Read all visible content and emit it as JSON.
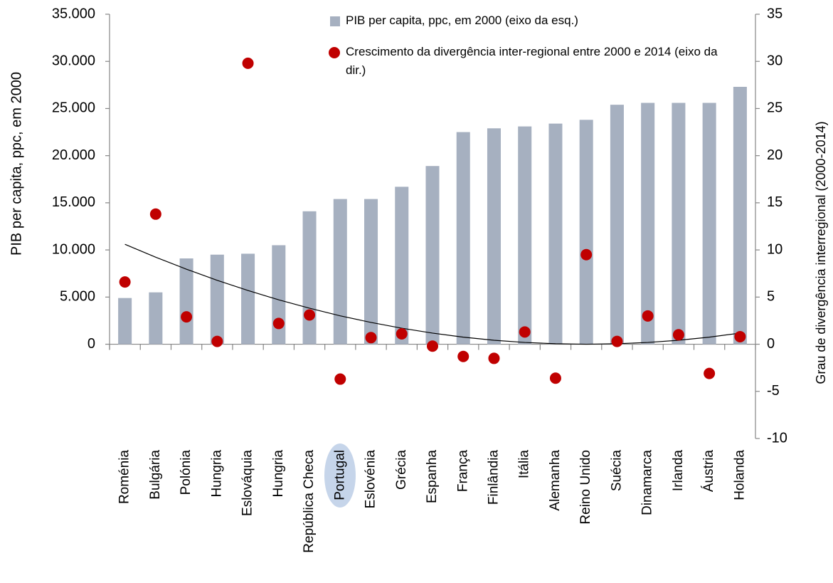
{
  "chart_data": {
    "type": "combo",
    "y_label": "PIB per capita, ppc, em 2000",
    "y2_label": "Grau de divergência interregional (2000-2014)",
    "categories": [
      "Roménia",
      "Bulgária",
      "Polónia",
      "Hungria",
      "Eslováquia",
      "Hungria",
      "República Checa",
      "Portugal",
      "Eslovénia",
      "Grécia",
      "Espanha",
      "França",
      "Finlândia",
      "Itália",
      "Alemanha",
      "Reino Unido",
      "Suécia",
      "Dinamarca",
      "Irlanda",
      "Áustria",
      "Holanda"
    ],
    "series": [
      {
        "name": "PIB per capita, ppc, em 2000 (eixo da esq.)",
        "type": "bar",
        "axis": "y",
        "color": "#a6b0c0",
        "values": [
          4900,
          5500,
          9100,
          9500,
          9600,
          10500,
          14100,
          15400,
          15400,
          16700,
          18900,
          22500,
          22900,
          23100,
          23400,
          23800,
          25400,
          25600,
          25600,
          25600,
          27300
        ]
      },
      {
        "name": "Crescimento da divergência inter-regional entre 2000 e 2014 (eixo da dir.)",
        "type": "scatter",
        "axis": "y2",
        "color": "#c00000",
        "values": [
          6.6,
          13.8,
          2.9,
          0.3,
          29.8,
          2.2,
          3.1,
          -3.7,
          0.7,
          1.1,
          -0.2,
          -1.3,
          -1.5,
          1.3,
          -3.6,
          9.5,
          0.3,
          3.0,
          1.0,
          -3.1,
          0.8
        ]
      }
    ],
    "trendline": {
      "axis": "y2",
      "color": "#000000",
      "values": [
        10.6,
        9.23,
        7.96,
        6.78,
        5.7,
        4.71,
        3.82,
        3.01,
        2.31,
        1.7,
        1.18,
        0.75,
        0.42,
        0.19,
        0.05,
        0,
        0.05,
        0.19,
        0.42,
        0.75,
        1.18
      ]
    },
    "ylim": [
      -10000,
      35000
    ],
    "yticks": [
      0,
      {
        "value": 5000,
        "label": "5.000"
      },
      {
        "value": 10000,
        "label": "10.000"
      },
      {
        "value": 15000,
        "label": "15.000"
      },
      {
        "value": 20000,
        "label": "20.000"
      },
      {
        "value": 25000,
        "label": "25.000"
      },
      {
        "value": 30000,
        "label": "30.000"
      },
      {
        "value": 35000,
        "label": "35.000"
      }
    ],
    "y2lim": [
      -10,
      35
    ],
    "y2ticks": [
      -10,
      -5,
      0,
      5,
      10,
      15,
      20,
      25,
      30,
      35
    ],
    "grid": false
  }
}
